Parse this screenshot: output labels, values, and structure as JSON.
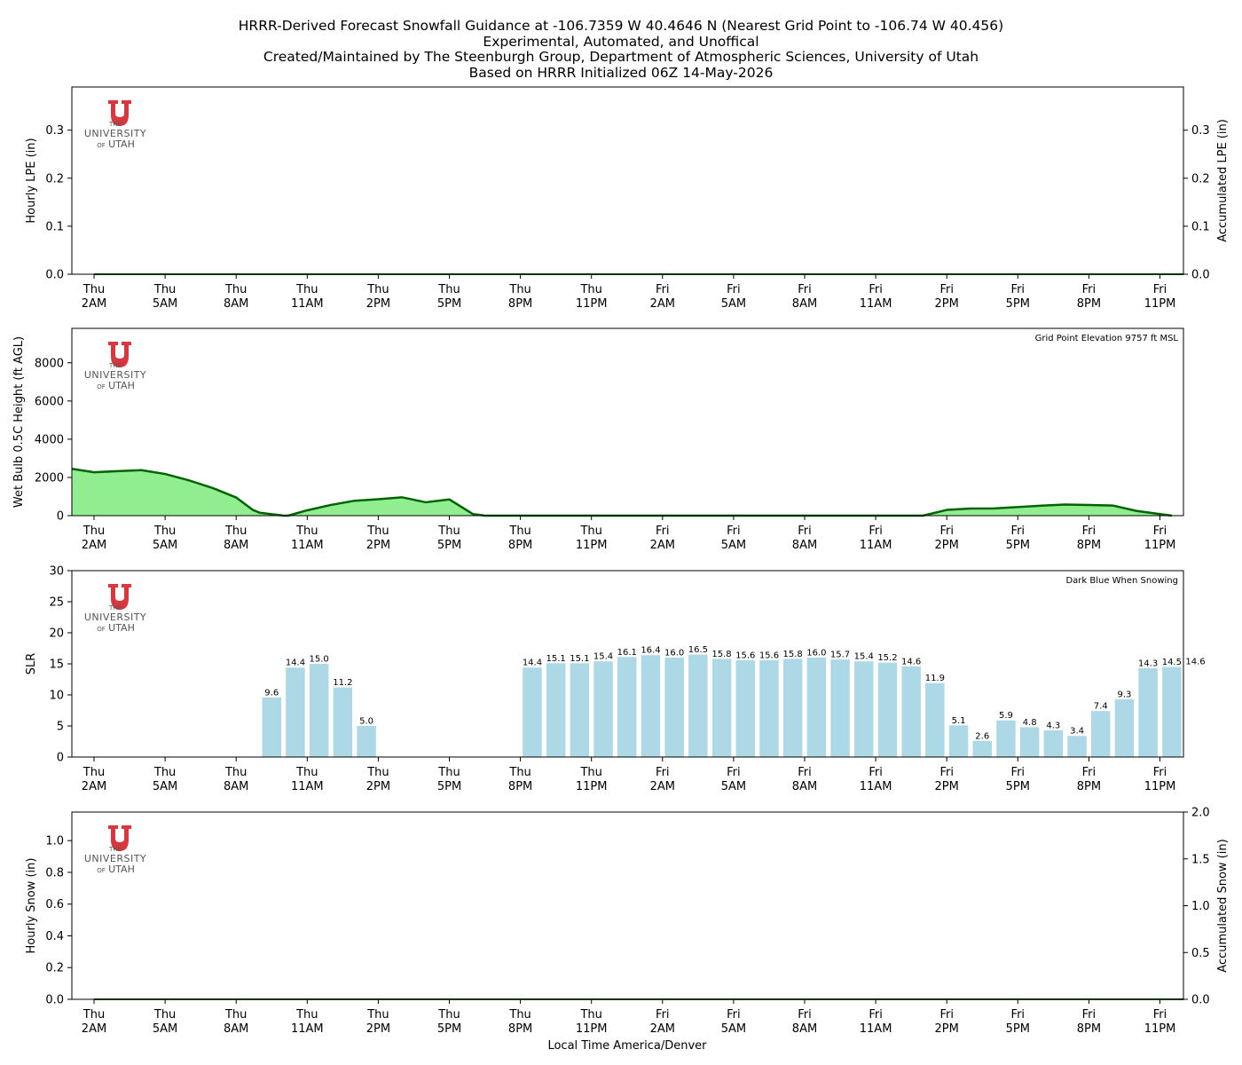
{
  "title_lines": [
    "HRRR-Derived Forecast Snowfall Guidance at -106.7359 W 40.4646 N (Nearest Grid Point to -106.74 W 40.456)",
    "Experimental, Automated, and Unoffical",
    "Created/Maintained by The Steenburgh Group, Department of Atmospheric Sciences, University of Utah",
    "Based on HRRR Initialized 06Z 14-May-2026"
  ],
  "logo": {
    "line1": "THE",
    "line2": "UNIVERSITY",
    "line3a": "OF",
    "line3b": "UTAH",
    "color": "#d9363e"
  },
  "xlabel": "Local Time America/Denver",
  "x_ticks": [
    {
      "day": "Thu",
      "time": "2AM"
    },
    {
      "day": "Thu",
      "time": "5AM"
    },
    {
      "day": "Thu",
      "time": "8AM"
    },
    {
      "day": "Thu",
      "time": "11AM"
    },
    {
      "day": "Thu",
      "time": "2PM"
    },
    {
      "day": "Thu",
      "time": "5PM"
    },
    {
      "day": "Thu",
      "time": "8PM"
    },
    {
      "day": "Thu",
      "time": "11PM"
    },
    {
      "day": "Fri",
      "time": "2AM"
    },
    {
      "day": "Fri",
      "time": "5AM"
    },
    {
      "day": "Fri",
      "time": "8AM"
    },
    {
      "day": "Fri",
      "time": "11AM"
    },
    {
      "day": "Fri",
      "time": "2PM"
    },
    {
      "day": "Fri",
      "time": "5PM"
    },
    {
      "day": "Fri",
      "time": "8PM"
    },
    {
      "day": "Fri",
      "time": "11PM"
    }
  ],
  "chart_data": [
    {
      "id": "lpe",
      "type": "bar",
      "ylabel": "Hourly LPE (in)",
      "ylabel_right": "Accumulated LPE (in)",
      "ylim": [
        0,
        0.39
      ],
      "yticks": [
        0.0,
        0.1,
        0.2,
        0.3
      ],
      "ytick_labels": [
        "0.0",
        "0.1",
        "0.2",
        "0.3"
      ],
      "x_hours": [
        0,
        46
      ],
      "hourly_values": [],
      "accumulated": [
        0,
        0
      ]
    },
    {
      "id": "wetbulb",
      "type": "area",
      "ylabel": "Wet Bulb 0.5C Height (ft AGL)",
      "annotation": "Grid Point Elevation 9757 ft MSL",
      "ylim": [
        0,
        9800
      ],
      "yticks": [
        0,
        2000,
        4000,
        6000,
        8000
      ],
      "ytick_labels": [
        "0",
        "2000",
        "4000",
        "6000",
        "8000"
      ],
      "fill_color": "#90ee90",
      "line_color": "#006400",
      "x_hours": [
        -1,
        0,
        1,
        2,
        3,
        4,
        5,
        6,
        6.7,
        7,
        8,
        8.2,
        9,
        10,
        11,
        12,
        13,
        14,
        15,
        16,
        16.5,
        35,
        36,
        37,
        38,
        39,
        40,
        41,
        42,
        43,
        44,
        45,
        45.5
      ],
      "values": [
        2450,
        2270,
        2330,
        2380,
        2180,
        1850,
        1450,
        950,
        300,
        150,
        0,
        0,
        280,
        560,
        780,
        860,
        960,
        700,
        850,
        80,
        0,
        0,
        300,
        370,
        380,
        450,
        520,
        580,
        560,
        530,
        250,
        80,
        0
      ]
    },
    {
      "id": "slr",
      "type": "bar",
      "ylabel": "SLR",
      "annotation": "Dark Blue When Snowing",
      "ylim": [
        0,
        30
      ],
      "yticks": [
        0,
        5,
        10,
        15,
        20,
        25,
        30
      ],
      "ytick_labels": [
        "0",
        "5",
        "10",
        "15",
        "20",
        "25",
        "30"
      ],
      "bar_color": "#add8e6",
      "x_hours": [
        7.5,
        8.5,
        9.5,
        10.5,
        11.5,
        18.5,
        19.5,
        20.5,
        21.5,
        22.5,
        23.5,
        24.5,
        25.5,
        26.5,
        27.5,
        28.5,
        29.5,
        30.5,
        31.5,
        32.5,
        33.5,
        34.5,
        35.5,
        36.5,
        37.5,
        38.5,
        39.5,
        40.5,
        41.5,
        42.5,
        43.5,
        44.5,
        45.5
      ],
      "values": [
        9.6,
        14.4,
        15.0,
        11.2,
        5.0,
        14.4,
        15.1,
        15.1,
        15.4,
        16.1,
        16.4,
        16.0,
        16.5,
        15.8,
        15.6,
        15.6,
        15.8,
        16.0,
        15.7,
        15.4,
        15.2,
        14.6,
        11.9,
        5.1,
        2.6,
        5.9,
        4.8,
        4.3,
        3.4,
        7.4,
        9.3,
        14.3,
        14.5
      ],
      "value_labels": [
        "9.6",
        "14.4",
        "15.0",
        "11.2",
        "5.0",
        "14.4",
        "15.1",
        "15.1",
        "15.4",
        "16.1",
        "16.4",
        "16.0",
        "16.5",
        "15.8",
        "15.6",
        "15.6",
        "15.8",
        "16.0",
        "15.7",
        "15.4",
        "15.2",
        "14.6",
        "11.9",
        "5.1",
        "2.6",
        "5.9",
        "4.8",
        "4.3",
        "3.4",
        "7.4",
        "9.3",
        "14.3",
        "14.5"
      ],
      "partial_bar_value": 14.6,
      "partial_bar_label": "14.6"
    },
    {
      "id": "snow",
      "type": "bar",
      "ylabel": "Hourly Snow (in)",
      "ylabel_right": "Accumulated Snow (in)",
      "ylim": [
        0,
        1.18
      ],
      "yticks": [
        0.0,
        0.2,
        0.4,
        0.6,
        0.8,
        1.0
      ],
      "ytick_labels": [
        "0.0",
        "0.2",
        "0.4",
        "0.6",
        "0.8",
        "1.0"
      ],
      "ylim_right": [
        0,
        2.0
      ],
      "yticks_right": [
        0.0,
        0.5,
        1.0,
        1.5,
        2.0
      ],
      "ytick_labels_right": [
        "0.0",
        "0.5",
        "1.0",
        "1.5",
        "2.0"
      ],
      "x_hours": [
        0,
        46
      ],
      "hourly_values": [],
      "accumulated": [
        0,
        0
      ]
    }
  ]
}
